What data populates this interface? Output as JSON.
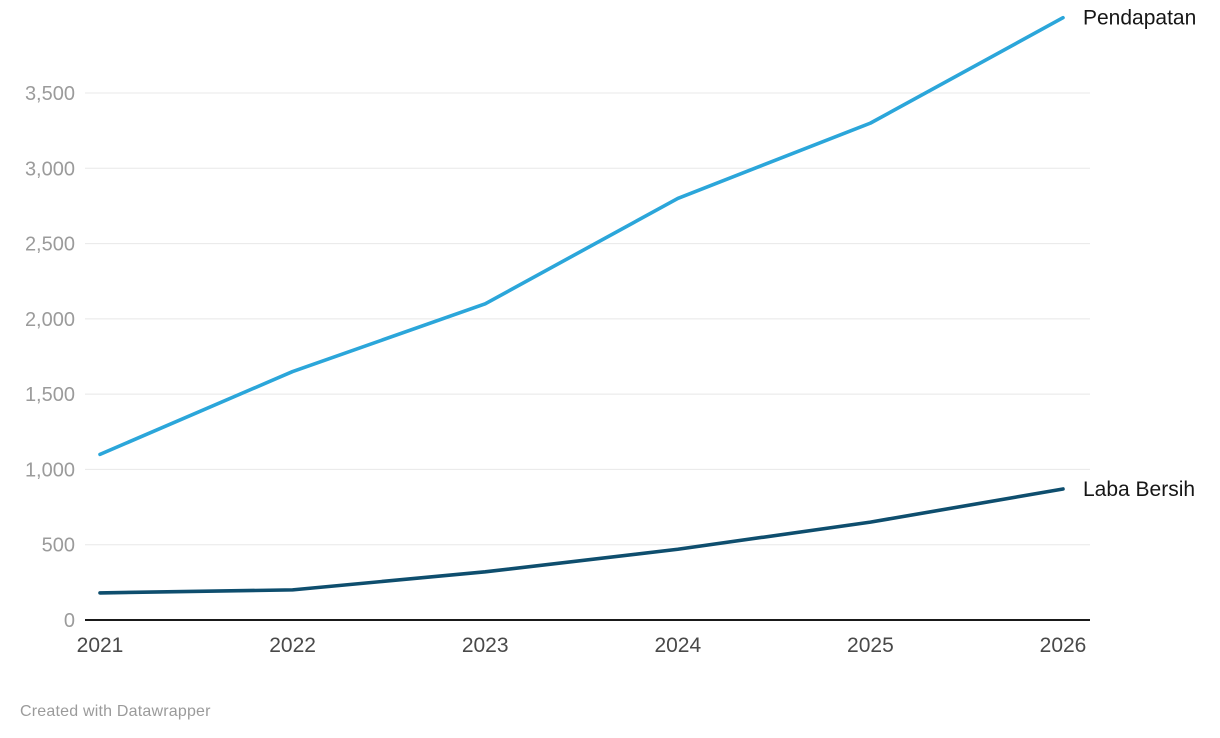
{
  "chart_data": {
    "type": "line",
    "x": [
      "2021",
      "2022",
      "2023",
      "2024",
      "2025",
      "2026"
    ],
    "series": [
      {
        "name": "Pendapatan",
        "values": [
          1100,
          1650,
          2100,
          2800,
          3300,
          4000
        ],
        "color": "#2ba6da"
      },
      {
        "name": "Laba Bersih",
        "values": [
          180,
          200,
          320,
          470,
          650,
          870
        ],
        "color": "#0e4e6e"
      }
    ],
    "ylim": [
      0,
      4000
    ],
    "yticks": [
      0,
      500,
      1000,
      1500,
      2000,
      2500,
      3000,
      3500
    ],
    "ytick_labels": [
      "0",
      "500",
      "1,000",
      "1,500",
      "2,000",
      "2,500",
      "3,000",
      "3,500"
    ],
    "grid": "horizontal",
    "legend_position": "line-end-labels",
    "grid_color": "#e8e8e8",
    "axis_color": "#1a1a1a",
    "tick_label_color": "#9b9b9b",
    "x_label_color": "#494949",
    "series_label_color": "#161616"
  },
  "footer": {
    "credit": "Created with Datawrapper"
  }
}
